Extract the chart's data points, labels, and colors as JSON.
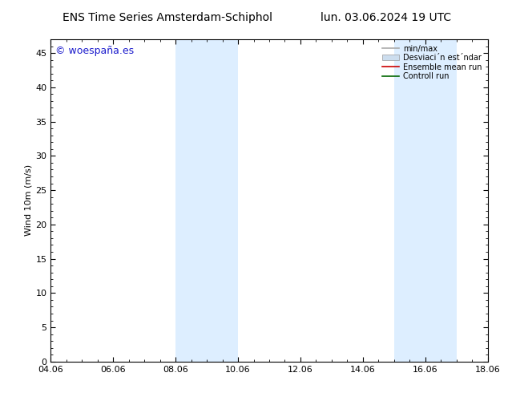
{
  "title_left": "ENS Time Series Amsterdam-Schiphol",
  "title_right": "lun. 03.06.2024 19 UTC",
  "ylabel": "Wind 10m (m/s)",
  "xlabel": "",
  "watermark": "© woespaña.es",
  "watermark_color": "#1a1acc",
  "xlim_start": 4.06,
  "xlim_end": 18.06,
  "ylim": [
    0,
    47
  ],
  "yticks": [
    0,
    5,
    10,
    15,
    20,
    25,
    30,
    35,
    40,
    45
  ],
  "xtick_labels": [
    "04.06",
    "06.06",
    "08.06",
    "10.06",
    "12.06",
    "14.06",
    "16.06",
    "18.06"
  ],
  "xtick_positions": [
    4.06,
    6.06,
    8.06,
    10.06,
    12.06,
    14.06,
    16.06,
    18.06
  ],
  "shaded_bands": [
    {
      "xmin": 8.06,
      "xmax": 10.06
    },
    {
      "xmin": 15.06,
      "xmax": 17.06
    }
  ],
  "shade_color": "#ddeeff",
  "shade_alpha": 1.0,
  "background_color": "#ffffff",
  "legend_labels": [
    "min/max",
    "Desviaci´n est´ndar",
    "Ensemble mean run",
    "Controll run"
  ],
  "legend_handle_colors": [
    "#aaaaaa",
    "#ccddee",
    "#cc0000",
    "#006600"
  ],
  "tick_direction": "in",
  "font_size": 8,
  "watermark_size": 9,
  "title_font_size": 10
}
